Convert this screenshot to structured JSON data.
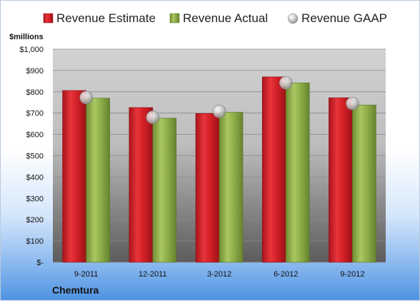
{
  "company": "Chemtura",
  "units_label": "$millions",
  "colors": {
    "estimate": "#d42027",
    "actual": "#8fb04a",
    "gaap": "#bcbcbc"
  },
  "chart_data": {
    "type": "bar",
    "title": "",
    "xlabel": "",
    "ylabel": "$millions",
    "ylim": [
      0,
      1000
    ],
    "yticks": [
      0,
      100,
      200,
      300,
      400,
      500,
      600,
      700,
      800,
      900,
      1000
    ],
    "ytick_labels": [
      "$-",
      "$100",
      "$200",
      "$300",
      "$400",
      "$500",
      "$600",
      "$700",
      "$800",
      "$900",
      "$1,000"
    ],
    "categories": [
      "9-2011",
      "12-2011",
      "3-2012",
      "6-2012",
      "9-2012"
    ],
    "series": [
      {
        "name": "Revenue Estimate",
        "type": "bar",
        "values": [
          806,
          726,
          698,
          870,
          772
        ]
      },
      {
        "name": "Revenue Actual",
        "type": "bar",
        "values": [
          770,
          676,
          704,
          842,
          738
        ]
      },
      {
        "name": "Revenue GAAP",
        "type": "scatter",
        "values": [
          773,
          680,
          708,
          842,
          745
        ]
      }
    ],
    "legend_position": "top",
    "grid": true
  }
}
